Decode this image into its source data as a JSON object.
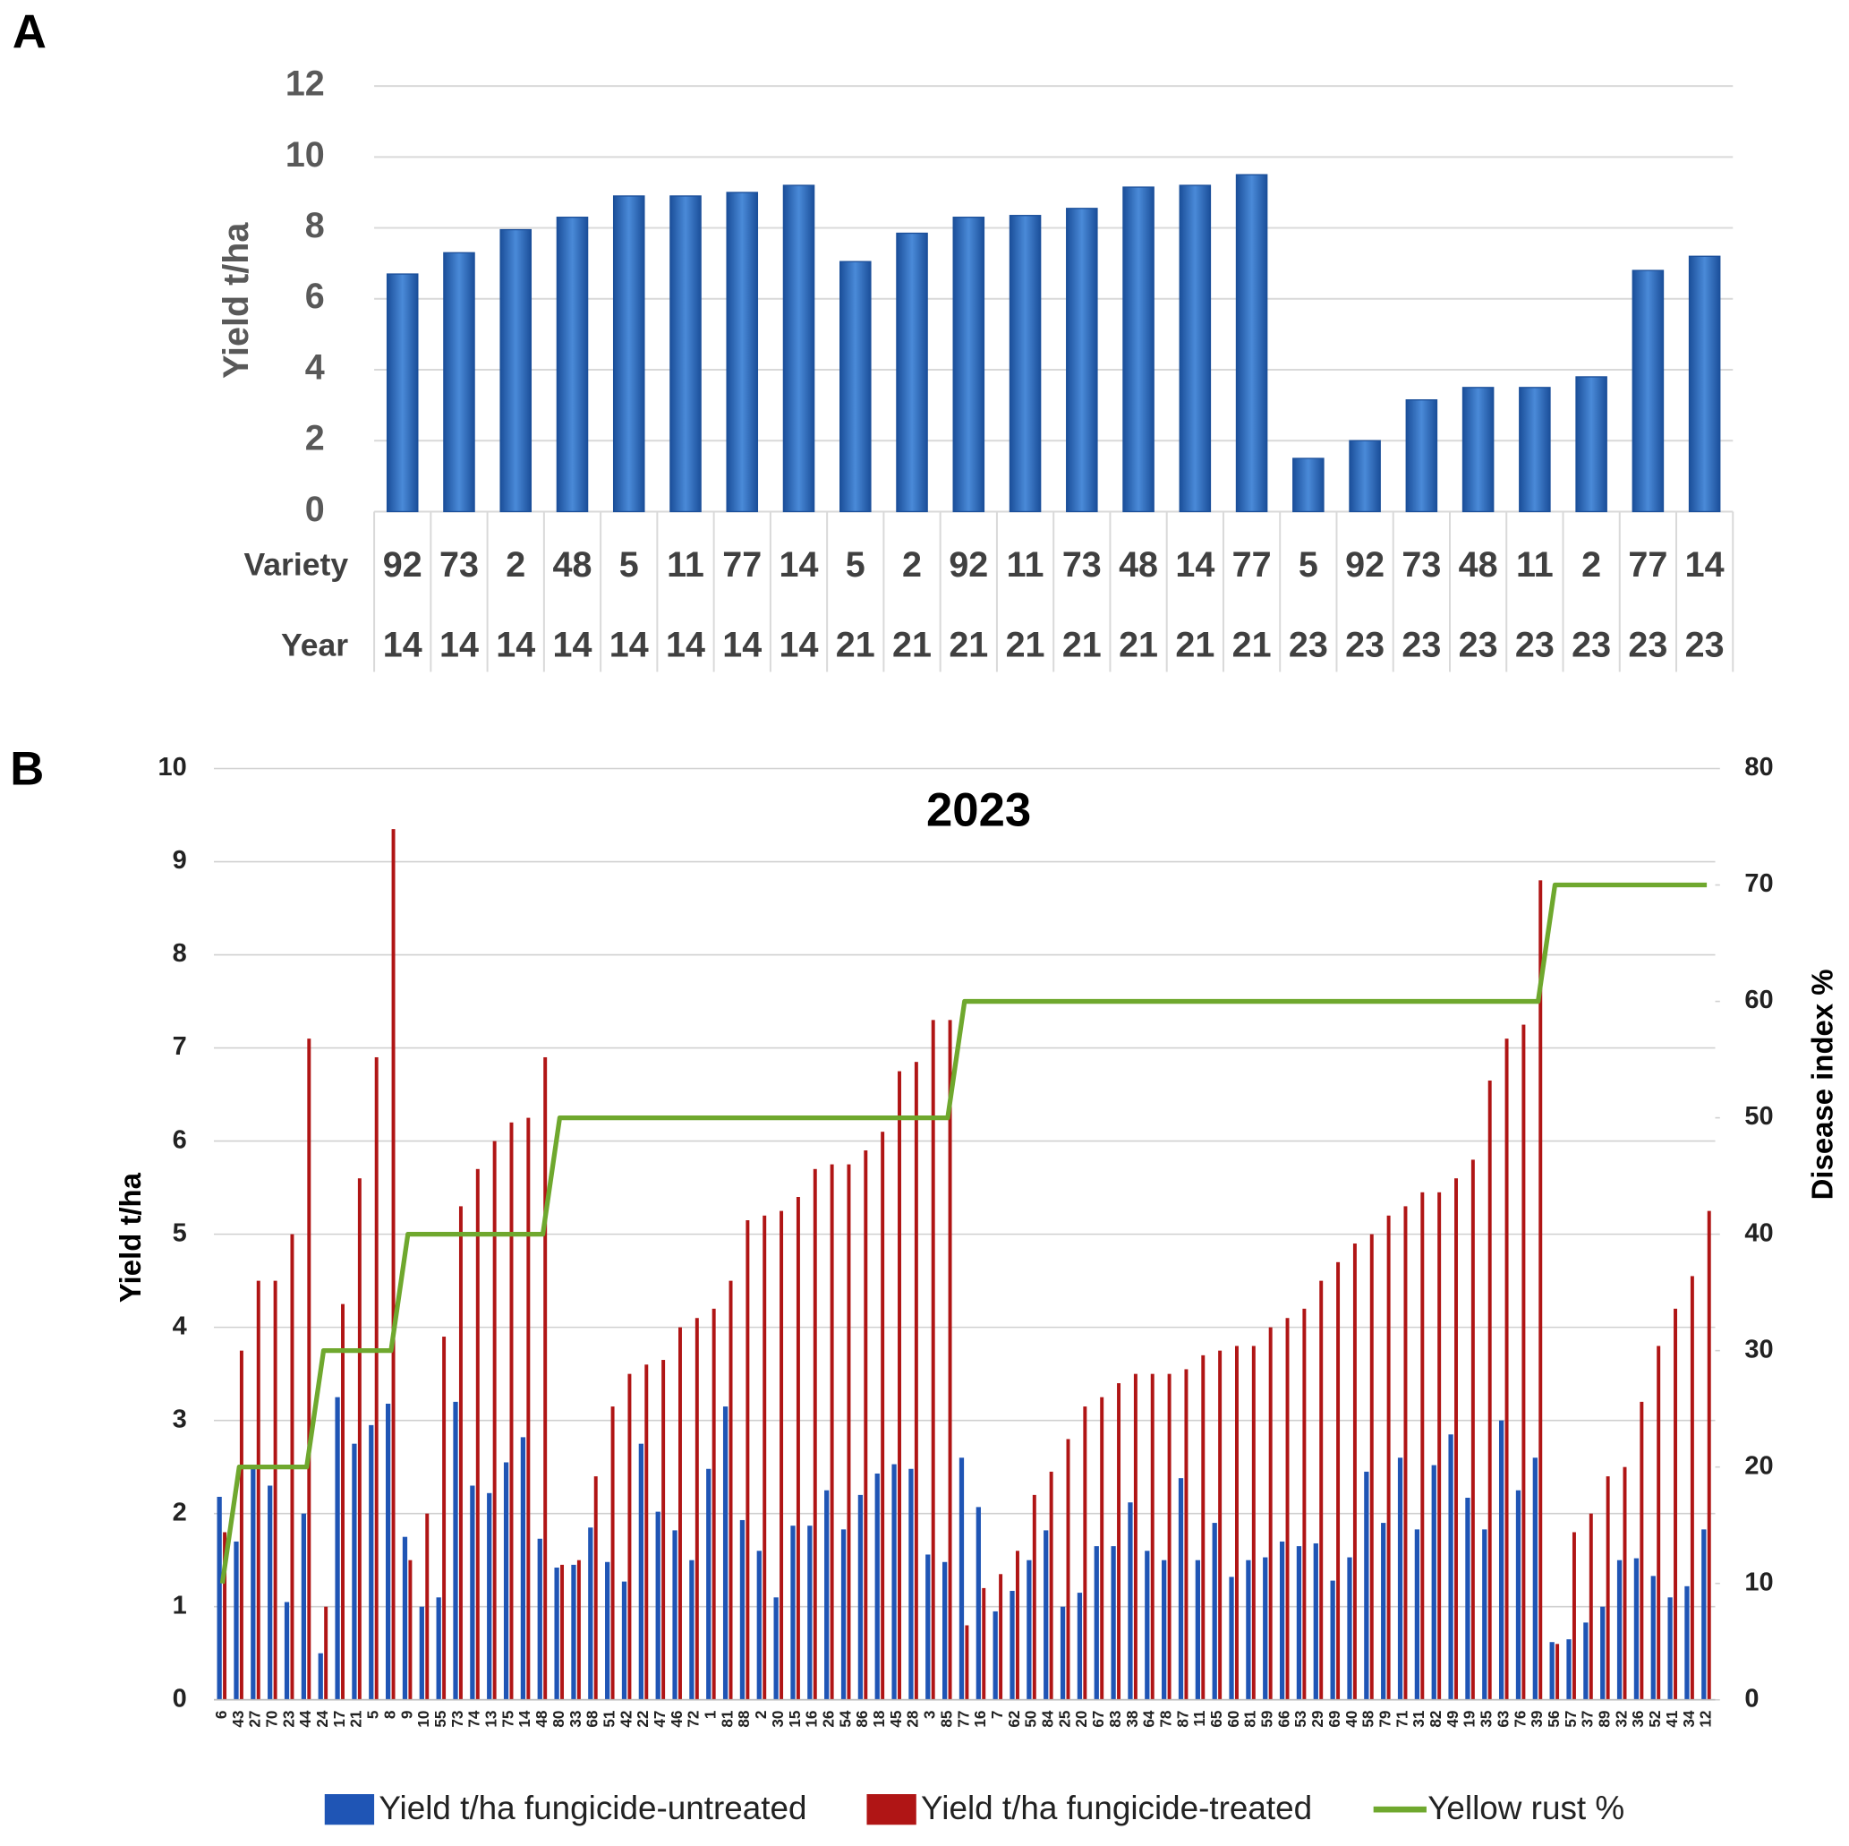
{
  "chart_data": [
    {
      "type": "bar",
      "panel": "A",
      "ylabel": "Yield t/ha",
      "category_label": "Variety",
      "year_label": "Year",
      "categories": [
        "92",
        "73",
        "2",
        "48",
        "5",
        "11",
        "77",
        "14",
        "5",
        "2",
        "92",
        "11",
        "73",
        "48",
        "14",
        "77",
        "5",
        "92",
        "73",
        "48",
        "11",
        "2",
        "77",
        "14"
      ],
      "years": [
        "14",
        "14",
        "14",
        "14",
        "14",
        "14",
        "14",
        "14",
        "21",
        "21",
        "21",
        "21",
        "21",
        "21",
        "21",
        "21",
        "23",
        "23",
        "23",
        "23",
        "23",
        "23",
        "23",
        "23"
      ],
      "values": [
        6.7,
        7.3,
        7.95,
        8.3,
        8.9,
        8.9,
        9.0,
        9.2,
        7.05,
        7.85,
        8.3,
        8.35,
        8.55,
        9.15,
        9.2,
        9.5,
        1.5,
        2.0,
        3.15,
        3.5,
        3.5,
        3.8,
        6.8,
        7.2
      ],
      "color": "#2e6fc0",
      "ylim": [
        0,
        12
      ],
      "yticks": [
        0,
        2,
        4,
        6,
        8,
        10,
        12
      ],
      "grid": true
    },
    {
      "type": "bar_line",
      "panel": "B",
      "title": "2023",
      "ylabel": "Yield t/ha",
      "y2label": "Disease index %",
      "categories": [
        "6",
        "43",
        "27",
        "70",
        "23",
        "44",
        "24",
        "17",
        "21",
        "5",
        "8",
        "9",
        "10",
        "55",
        "73",
        "74",
        "13",
        "75",
        "14",
        "48",
        "80",
        "33",
        "68",
        "51",
        "42",
        "22",
        "47",
        "46",
        "72",
        "1",
        "81",
        "88",
        "2",
        "30",
        "15",
        "16",
        "26",
        "54",
        "86",
        "18",
        "45",
        "28",
        "3",
        "85",
        "77",
        "16",
        "7",
        "62",
        "50",
        "84",
        "25",
        "20",
        "67",
        "83",
        "38",
        "64",
        "78",
        "87",
        "11",
        "65",
        "60",
        "81",
        "59",
        "66",
        "53",
        "29",
        "69",
        "40",
        "58",
        "79",
        "71",
        "31",
        "82",
        "49",
        "19",
        "35",
        "63",
        "76",
        "39",
        "56",
        "57",
        "37",
        "89",
        "32",
        "36",
        "52",
        "41",
        "34",
        "12"
      ],
      "series": [
        {
          "name": "Yield t/ha fungicide-untreated",
          "color": "#1f55b5",
          "values": [
            2.18,
            1.7,
            2.5,
            2.3,
            1.05,
            2.0,
            0.5,
            3.25,
            2.75,
            2.95,
            3.18,
            1.75,
            1.0,
            1.1,
            3.2,
            2.3,
            2.22,
            2.55,
            2.82,
            1.73,
            1.42,
            1.45,
            1.85,
            1.48,
            1.27,
            2.75,
            2.02,
            1.82,
            1.5,
            2.48,
            3.15,
            1.93,
            1.6,
            1.1,
            1.87,
            1.87,
            2.25,
            1.83,
            2.2,
            2.43,
            2.53,
            2.48,
            1.56,
            1.48,
            2.6,
            2.07,
            0.95,
            1.17,
            1.5,
            1.82,
            1.0,
            1.15,
            1.65,
            1.65,
            2.12,
            1.6,
            1.5,
            2.38,
            1.5,
            1.9,
            1.32,
            1.5,
            1.53,
            1.7,
            1.65,
            1.68,
            1.28,
            1.53,
            2.45,
            1.9,
            2.6,
            1.83,
            2.52,
            2.85,
            2.17,
            1.83,
            3.0,
            2.25,
            2.6,
            0.62,
            0.65,
            0.83,
            1.0,
            1.5,
            1.52,
            1.33,
            1.1,
            1.22,
            1.83
          ]
        },
        {
          "name": "Yield t/ha fungicide-treated",
          "color": "#b01515",
          "values": [
            1.8,
            3.75,
            4.5,
            4.5,
            5.0,
            7.1,
            1.0,
            4.25,
            5.6,
            6.9,
            9.35,
            1.5,
            2.0,
            3.9,
            5.3,
            5.7,
            6.0,
            6.2,
            6.25,
            6.9,
            1.45,
            1.5,
            2.4,
            3.15,
            3.5,
            3.6,
            3.65,
            4.0,
            4.1,
            4.2,
            4.5,
            5.15,
            5.2,
            5.25,
            5.4,
            5.7,
            5.75,
            5.75,
            5.9,
            6.1,
            6.75,
            6.85,
            7.3,
            7.3,
            0.8,
            1.2,
            1.35,
            1.6,
            2.2,
            2.45,
            2.8,
            3.15,
            3.25,
            3.4,
            3.5,
            3.5,
            3.5,
            3.55,
            3.7,
            3.75,
            3.8,
            3.8,
            4.0,
            4.1,
            4.2,
            4.5,
            4.7,
            4.9,
            5.0,
            5.2,
            5.3,
            5.45,
            5.45,
            5.6,
            5.8,
            6.65,
            7.1,
            7.25,
            8.8,
            0.6,
            1.8,
            2.0,
            2.4,
            2.5,
            3.2,
            3.8,
            4.2,
            4.55,
            5.25
          ]
        },
        {
          "name": "Yellow rust %",
          "color": "#6fa82e",
          "axis": "y2",
          "values": [
            10,
            20,
            20,
            20,
            20,
            20,
            30,
            30,
            30,
            30,
            30,
            40,
            40,
            40,
            40,
            40,
            40,
            40,
            40,
            40,
            50,
            50,
            50,
            50,
            50,
            50,
            50,
            50,
            50,
            50,
            50,
            50,
            50,
            50,
            50,
            50,
            50,
            50,
            50,
            50,
            50,
            50,
            50,
            50,
            60,
            60,
            60,
            60,
            60,
            60,
            60,
            60,
            60,
            60,
            60,
            60,
            60,
            60,
            60,
            60,
            60,
            60,
            60,
            60,
            60,
            60,
            60,
            60,
            60,
            60,
            60,
            60,
            60,
            60,
            60,
            60,
            60,
            60,
            60,
            70,
            70,
            70,
            70,
            70,
            70,
            70,
            70,
            70,
            70
          ]
        }
      ],
      "ylim": [
        0,
        10
      ],
      "yticks": [
        0,
        1,
        2,
        3,
        4,
        5,
        6,
        7,
        8,
        9,
        10
      ],
      "y2lim": [
        0,
        80
      ],
      "y2ticks": [
        0,
        10,
        20,
        30,
        40,
        50,
        60,
        70,
        80
      ],
      "grid": true,
      "legend": "bottom"
    }
  ]
}
